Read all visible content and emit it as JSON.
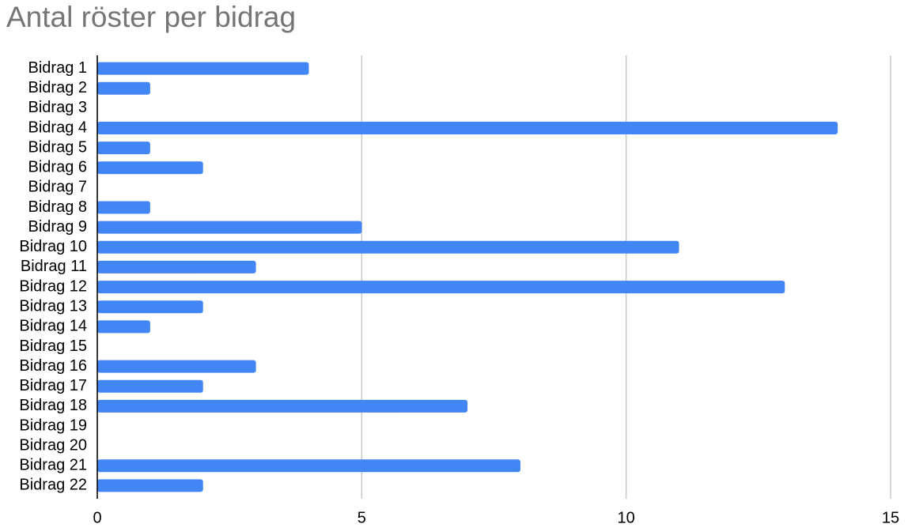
{
  "chart_data": {
    "type": "hbar",
    "title": "Antal röster per bidrag",
    "categories": [
      "Bidrag 1",
      "Bidrag 2",
      "Bidrag 3",
      "Bidrag 4",
      "Bidrag 5",
      "Bidrag 6",
      "Bidrag 7",
      "Bidrag 8",
      "Bidrag 9",
      "Bidrag 10",
      "Bidrag 11",
      "Bidrag 12",
      "Bidrag 13",
      "Bidrag 14",
      "Bidrag 15",
      "Bidrag 16",
      "Bidrag 17",
      "Bidrag 18",
      "Bidrag 19",
      "Bidrag 20",
      "Bidrag 21",
      "Bidrag 22"
    ],
    "values": [
      4,
      1,
      0,
      14,
      1,
      2,
      0,
      1,
      5,
      11,
      3,
      13,
      2,
      1,
      0,
      3,
      2,
      7,
      0,
      0,
      8,
      2
    ],
    "color": "#4285f4",
    "xlim": [
      0,
      15
    ],
    "xticks": [
      0,
      5,
      10,
      15
    ],
    "grid": true
  }
}
